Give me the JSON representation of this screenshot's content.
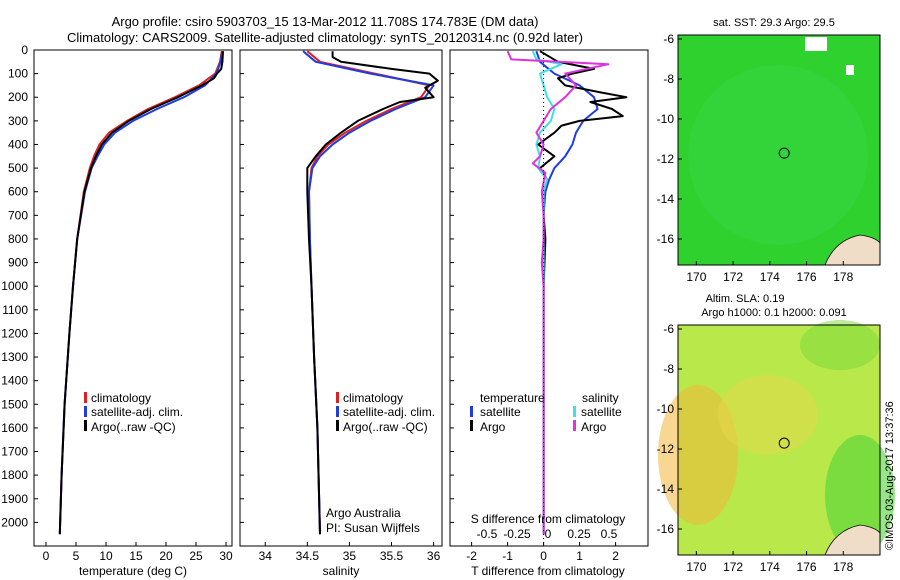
{
  "titles": {
    "line1": "Argo profile: csiro 5903703_15 13-Mar-2012 11.708S 174.783E (DM data)",
    "line2": "Climatology: CARS2009. Satellite-adjusted climatology: synTS_20120314.nc (0.92d later)"
  },
  "timestamp": "©IMOS 03-Aug-2017 13:37:36",
  "map_titles": {
    "sst": "sat. SST: 29.3 Argo: 29.5",
    "sla1": "Altim. SLA: 0.19",
    "sla2": "Argo h1000: 0.1 h2000: 0.091"
  },
  "legends": {
    "panel1": [
      "climatology",
      "satellite-adj. clim.",
      "Argo(..raw -QC)"
    ],
    "panel2": [
      "climatology",
      "satellite-adj. clim.",
      "Argo(..raw -QC)"
    ],
    "panel3_temperature_header": "temperature",
    "panel3_salinity_header": "salinity",
    "panel3_temperature": [
      "satellite",
      "Argo"
    ],
    "panel3_salinity": [
      "satellite",
      "Argo"
    ]
  },
  "annotations": {
    "argo_australia": "Argo Australia",
    "pi": "PI: Susan Wijffels"
  },
  "colors": {
    "climatology": "#e02020",
    "satellite": "#1f3ce0",
    "argo": "#000000",
    "s_satellite": "#3ee0e8",
    "s_argo": "#e030e0",
    "sst_field": "#2fd12f",
    "sla_field": "#b8e84a"
  },
  "chart_data": [
    {
      "type": "line",
      "xlabel": "temperature (deg C)",
      "ylabel": "",
      "xlim": [
        -2,
        31
      ],
      "ylim": [
        2100,
        0
      ],
      "xticks": [
        0,
        5,
        10,
        15,
        20,
        25,
        30
      ],
      "yticks": [
        0,
        100,
        200,
        300,
        400,
        500,
        600,
        700,
        800,
        900,
        1000,
        1100,
        1200,
        1300,
        1400,
        1500,
        1600,
        1700,
        1800,
        1900,
        2000
      ],
      "series": [
        {
          "name": "climatology",
          "depth": [
            5,
            50,
            100,
            150,
            200,
            250,
            300,
            350,
            400,
            450,
            500,
            600,
            800,
            1000,
            1200,
            1500,
            1800,
            2050
          ],
          "values": [
            29.3,
            29.0,
            28.2,
            25.5,
            21.5,
            17.0,
            13.5,
            10.5,
            8.9,
            8.0,
            7.3,
            6.3,
            5.2,
            4.5,
            3.9,
            3.1,
            2.6,
            2.3
          ]
        },
        {
          "name": "satellite-adj. clim.",
          "depth": [
            5,
            50,
            100,
            150,
            200,
            250,
            300,
            350,
            400,
            450,
            500,
            600,
            800,
            1000,
            1200,
            1500,
            1800,
            2050
          ],
          "values": [
            29.4,
            29.1,
            28.4,
            26.5,
            23.0,
            18.5,
            14.5,
            11.5,
            9.7,
            8.6,
            7.6,
            6.5,
            5.2,
            4.5,
            3.9,
            3.1,
            2.6,
            2.3
          ]
        },
        {
          "name": "Argo(..raw -QC)",
          "depth": [
            5,
            50,
            80,
            100,
            120,
            150,
            200,
            250,
            300,
            350,
            400,
            450,
            500,
            600,
            800,
            1000,
            1200,
            1500,
            1800,
            2050
          ],
          "values": [
            29.5,
            29.4,
            29.2,
            28.5,
            28.0,
            26.0,
            22.0,
            17.5,
            13.8,
            11.0,
            9.3,
            8.3,
            7.5,
            6.4,
            5.2,
            4.5,
            3.9,
            3.1,
            2.6,
            2.3
          ]
        }
      ]
    },
    {
      "type": "line",
      "xlabel": "salinity",
      "ylabel": "",
      "xlim": [
        33.7,
        36.1
      ],
      "ylim": [
        2100,
        0
      ],
      "xticks": [
        34,
        34.5,
        35,
        35.5,
        36
      ],
      "series": [
        {
          "name": "climatology",
          "depth": [
            5,
            50,
            100,
            150,
            200,
            250,
            300,
            350,
            400,
            450,
            500,
            600,
            800,
            1000,
            1300,
            1600,
            2050
          ],
          "values": [
            34.5,
            34.65,
            35.3,
            35.95,
            35.85,
            35.5,
            35.2,
            34.95,
            34.75,
            34.62,
            34.55,
            34.52,
            34.53,
            34.55,
            34.58,
            34.62,
            34.65
          ]
        },
        {
          "name": "satellite-adj. clim.",
          "depth": [
            5,
            50,
            100,
            150,
            200,
            250,
            300,
            350,
            400,
            450,
            500,
            600,
            800,
            1000,
            1300,
            1600,
            2050
          ],
          "values": [
            34.45,
            34.6,
            35.25,
            36.0,
            35.9,
            35.55,
            35.25,
            35.0,
            34.8,
            34.65,
            34.56,
            34.52,
            34.53,
            34.55,
            34.58,
            34.62,
            34.65
          ]
        },
        {
          "name": "Argo(..raw -QC)",
          "depth": [
            5,
            30,
            50,
            80,
            100,
            130,
            160,
            200,
            220,
            250,
            300,
            350,
            400,
            450,
            500,
            600,
            800,
            1000,
            1300,
            1600,
            2050
          ],
          "values": [
            34.8,
            34.8,
            34.9,
            35.5,
            35.95,
            36.05,
            35.9,
            36.0,
            35.6,
            35.4,
            35.1,
            34.9,
            34.72,
            34.6,
            34.5,
            34.5,
            34.52,
            34.55,
            34.58,
            34.62,
            34.65
          ]
        }
      ]
    },
    {
      "type": "line",
      "xlabel": "T difference from climatology",
      "x2label": "S difference from climatology",
      "xlim": [
        -2.6,
        2.9
      ],
      "ylim": [
        2100,
        0
      ],
      "xticks": [
        -2,
        -1,
        0,
        1,
        2
      ],
      "x2ticks": [
        -0.5,
        -0.25,
        0,
        0.25,
        0.5
      ],
      "series": [
        {
          "name": "temperature satellite",
          "depth": [
            5,
            50,
            100,
            150,
            200,
            250,
            300,
            350,
            400,
            450,
            500,
            550,
            600,
            700,
            800,
            1000,
            1500,
            2050
          ],
          "values": [
            -0.2,
            -0.1,
            0.3,
            1.0,
            1.4,
            1.5,
            1.1,
            0.9,
            0.8,
            0.6,
            0.3,
            0.15,
            0.05,
            0.0,
            0.0,
            0.0,
            0.0,
            0.0
          ]
        },
        {
          "name": "temperature Argo",
          "depth": [
            5,
            50,
            80,
            100,
            120,
            150,
            180,
            200,
            220,
            250,
            280,
            300,
            320,
            350,
            400,
            450,
            500,
            550,
            600,
            700,
            800,
            1000,
            1500,
            2050
          ],
          "values": [
            -0.1,
            0.4,
            1.4,
            0.8,
            0.4,
            0.6,
            1.6,
            2.3,
            1.3,
            1.9,
            2.2,
            1.0,
            0.5,
            0.3,
            -0.15,
            0.3,
            -0.1,
            0.1,
            0.0,
            0.0,
            0.05,
            0.0,
            0.0,
            0.0
          ]
        },
        {
          "name": "salinity satellite",
          "depth": [
            5,
            40,
            60,
            100,
            150,
            200,
            250,
            300,
            350,
            400,
            450,
            500,
            550,
            600,
            700,
            800,
            1000,
            1500,
            2050
          ],
          "values": [
            -0.3,
            -0.2,
            0.5,
            -0.1,
            0.0,
            0.1,
            0.3,
            0.2,
            -0.1,
            -0.2,
            -0.1,
            -0.15,
            0.1,
            0.0,
            0.0,
            0.0,
            0.0,
            0.0,
            0.0
          ]
        },
        {
          "name": "salinity Argo",
          "depth": [
            5,
            40,
            60,
            100,
            150,
            200,
            250,
            300,
            350,
            400,
            450,
            480,
            520,
            600,
            700,
            800,
            900,
            1000,
            1200,
            1500,
            1800,
            2050
          ],
          "values": [
            -1.0,
            -0.9,
            1.8,
            0.6,
            0.9,
            0.6,
            0.2,
            0.0,
            -0.2,
            0.0,
            -0.1,
            -0.3,
            0.05,
            -0.05,
            0.0,
            0.0,
            -0.05,
            0.0,
            0.0,
            0.0,
            0.0,
            0.0
          ]
        }
      ]
    },
    {
      "type": "heatmap",
      "title": "sat. SST: 29.3 Argo: 29.5",
      "xticks": [
        170,
        172,
        174,
        176,
        178
      ],
      "yticks": [
        -6,
        -8,
        -10,
        -12,
        -14,
        -16
      ],
      "xlim": [
        169,
        180
      ],
      "ylim": [
        -17.3,
        -5.8
      ],
      "argo_position": {
        "lon": 174.783,
        "lat": -11.708
      }
    },
    {
      "type": "heatmap",
      "title": "Altim. SLA: 0.19",
      "subtitle": "Argo h1000: 0.1 h2000: 0.091",
      "xticks": [
        170,
        172,
        174,
        176,
        178
      ],
      "yticks": [
        -6,
        -8,
        -10,
        -12,
        -14,
        -16
      ],
      "xlim": [
        169,
        180
      ],
      "ylim": [
        -17.3,
        -5.8
      ],
      "argo_position": {
        "lon": 174.783,
        "lat": -11.708
      }
    }
  ]
}
